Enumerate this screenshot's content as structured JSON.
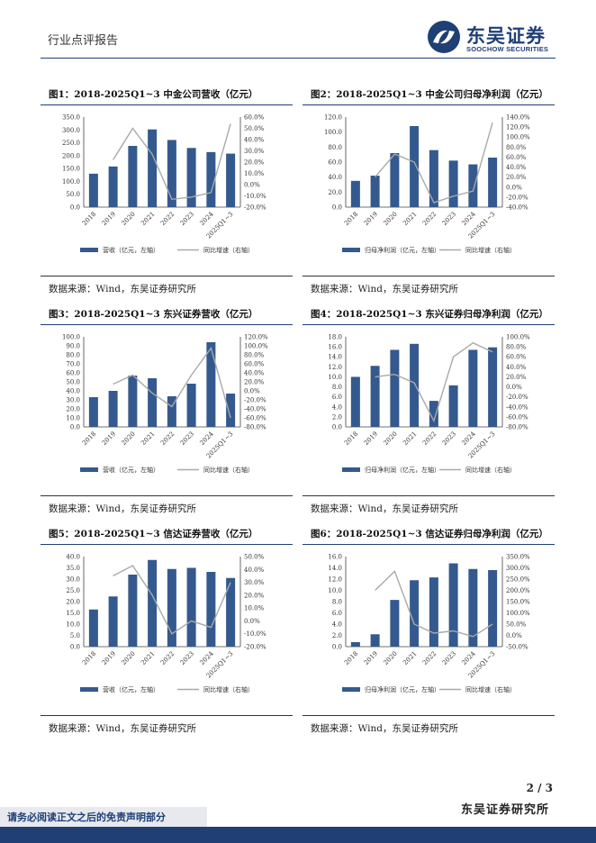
{
  "header": {
    "section_title": "行业点评报告",
    "logo_cn": "东吴证券",
    "logo_en": "SOOCHOW SECURITIES",
    "accent_color": "#1f3f75"
  },
  "footer": {
    "page_number": "2 / 3",
    "institution": "东吴证券研究所",
    "disclaimer": "请务必阅读正文之后的免责声明部分"
  },
  "panels": [
    {
      "title": "图1：2018-2025Q1~3 中金公司营收（亿元）",
      "source": "数据来源：Wind，东吴证券研究所",
      "legend_bar": "营收（亿元，左轴）",
      "legend_line": "同比增速（右轴）",
      "chart_data": {
        "type": "bar+line",
        "categories": [
          "2018",
          "2019",
          "2020",
          "2021",
          "2022",
          "2023",
          "2024",
          "2025Q1~3"
        ],
        "bar_values": [
          130,
          158,
          238,
          302,
          261,
          230,
          214,
          208
        ],
        "line_values": [
          null,
          22,
          50,
          27,
          -13,
          -11,
          -7,
          54
        ],
        "left_ticks": [
          "350.0",
          "300.0",
          "250.0",
          "200.0",
          "150.0",
          "100.0",
          "50.0",
          "0.0"
        ],
        "right_ticks": [
          "60.0%",
          "50.0%",
          "40.0%",
          "30.0%",
          "20.0%",
          "10.0%",
          "0.0%",
          "-10.0%",
          "-20.0%"
        ],
        "left_range": [
          0,
          350
        ],
        "right_range": [
          -20,
          60
        ],
        "bar_color": "#34598e",
        "line_color": "#a9a9a9"
      }
    },
    {
      "title": "图2：2018-2025Q1~3 中金公司归母净利润（亿元）",
      "source": "数据来源：Wind，东吴证券研究所",
      "legend_bar": "归母净利润（亿元，左轴）",
      "legend_line": "同比增速（右轴）",
      "chart_data": {
        "type": "bar+line",
        "categories": [
          "2018",
          "2019",
          "2020",
          "2021",
          "2022",
          "2023",
          "2024",
          "2025Q1~3"
        ],
        "bar_values": [
          35,
          42,
          72,
          108,
          76,
          62,
          57,
          66
        ],
        "line_values": [
          null,
          20,
          66,
          50,
          -31,
          -18,
          -8,
          129
        ],
        "left_ticks": [
          "120.0",
          "100.0",
          "80.0",
          "60.0",
          "40.0",
          "20.0",
          "0.0"
        ],
        "right_ticks": [
          "140.0%",
          "120.0%",
          "100.0%",
          "80.0%",
          "60.0%",
          "40.0%",
          "20.0%",
          "0.0%",
          "-20.0%",
          "-40.0%"
        ],
        "left_range": [
          0,
          120
        ],
        "right_range": [
          -40,
          140
        ],
        "bar_color": "#34598e",
        "line_color": "#a9a9a9"
      }
    },
    {
      "title": "图3：2018-2025Q1~3 东兴证券营收（亿元）",
      "source": "数据来源：Wind，东吴证券研究所",
      "legend_bar": "营收（亿元，左轴）",
      "legend_line": "同比增速（右轴）",
      "chart_data": {
        "type": "bar+line",
        "categories": [
          "2018",
          "2019",
          "2020",
          "2021",
          "2022",
          "2023",
          "2024",
          "2025Q1~3"
        ],
        "bar_values": [
          33,
          40,
          57,
          54,
          34,
          48,
          94,
          37
        ],
        "line_values": [
          null,
          15,
          35,
          -5,
          -35,
          35,
          95,
          -60
        ],
        "left_ticks": [
          "100.0",
          "90.0",
          "80.0",
          "70.0",
          "60.0",
          "50.0",
          "40.0",
          "30.0",
          "20.0",
          "10.0",
          "0.0"
        ],
        "right_ticks": [
          "120.0%",
          "100.0%",
          "80.0%",
          "60.0%",
          "40.0%",
          "20.0%",
          "0.0%",
          "-20.0%",
          "-40.0%",
          "-60.0%",
          "-80.0%"
        ],
        "left_range": [
          0,
          100
        ],
        "right_range": [
          -80,
          120
        ],
        "bar_color": "#34598e",
        "line_color": "#a9a9a9"
      }
    },
    {
      "title": "图4：2018-2025Q1~3 东兴证券归母净利润（亿元）",
      "source": "数据来源：Wind，东吴证券研究所",
      "legend_bar": "归母净利润（亿元，左轴）",
      "legend_line": "同比增速（右轴）",
      "chart_data": {
        "type": "bar+line",
        "categories": [
          "2018",
          "2019",
          "2020",
          "2021",
          "2022",
          "2023",
          "2024",
          "2025Q1~3"
        ],
        "bar_values": [
          10.0,
          12.2,
          15.4,
          16.6,
          5.2,
          8.3,
          15.4,
          15.9
        ],
        "line_values": [
          null,
          20,
          25,
          8,
          -68,
          60,
          88,
          70
        ],
        "left_ticks": [
          "18.0",
          "16.0",
          "14.0",
          "12.0",
          "10.0",
          "8.0",
          "6.0",
          "4.0",
          "2.0",
          "0.0"
        ],
        "right_ticks": [
          "100.0%",
          "80.0%",
          "60.0%",
          "40.0%",
          "20.0%",
          "0.0%",
          "-20.0%",
          "-40.0%",
          "-60.0%",
          "-80.0%"
        ],
        "left_range": [
          0,
          18
        ],
        "right_range": [
          -80,
          100
        ],
        "bar_color": "#34598e",
        "line_color": "#a9a9a9"
      }
    },
    {
      "title": "图5：2018-2025Q1~3 信达证券营收（亿元）",
      "source": "数据来源：Wind，东吴证券研究所",
      "legend_bar": "营收（亿元，左轴）",
      "legend_line": "同比增速（右轴）",
      "chart_data": {
        "type": "bar+line",
        "categories": [
          "2018",
          "2019",
          "2020",
          "2021",
          "2022",
          "2023",
          "2024",
          "2025Q1~3"
        ],
        "bar_values": [
          16.5,
          22.3,
          32.0,
          38.5,
          34.5,
          35.0,
          33.2,
          30.5
        ],
        "line_values": [
          null,
          35,
          43,
          20,
          -10,
          0,
          -5,
          30
        ],
        "left_ticks": [
          "40.0",
          "35.0",
          "30.0",
          "25.0",
          "20.0",
          "15.0",
          "10.0",
          "5.0",
          "0.0"
        ],
        "right_ticks": [
          "50.0%",
          "40.0%",
          "30.0%",
          "20.0%",
          "10.0%",
          "0.0%",
          "-10.0%",
          "-20.0%"
        ],
        "left_range": [
          0,
          40
        ],
        "right_range": [
          -20,
          50
        ],
        "bar_color": "#34598e",
        "line_color": "#a9a9a9"
      }
    },
    {
      "title": "图6：2018-2025Q1~3 信达证券归母净利润（亿元）",
      "source": "数据来源：Wind，东吴证券研究所",
      "legend_bar": "归母净利润（亿元，左轴）",
      "legend_line": "同比增速（右轴）",
      "chart_data": {
        "type": "bar+line",
        "categories": [
          "2018",
          "2019",
          "2020",
          "2021",
          "2022",
          "2023",
          "2024",
          "2025Q1~3"
        ],
        "bar_values": [
          0.8,
          2.2,
          8.3,
          11.8,
          12.3,
          14.8,
          13.8,
          13.6
        ],
        "line_values": [
          null,
          200,
          285,
          50,
          10,
          20,
          -5,
          50
        ],
        "left_ticks": [
          "16.0",
          "14.0",
          "12.0",
          "10.0",
          "8.0",
          "6.0",
          "4.0",
          "2.0",
          "0.0"
        ],
        "right_ticks": [
          "350.0%",
          "300.0%",
          "250.0%",
          "200.0%",
          "150.0%",
          "100.0%",
          "50.0%",
          "0.0%",
          "-50.0%"
        ],
        "left_range": [
          0,
          16
        ],
        "right_range": [
          -50,
          350
        ],
        "bar_color": "#34598e",
        "line_color": "#a9a9a9"
      }
    }
  ]
}
